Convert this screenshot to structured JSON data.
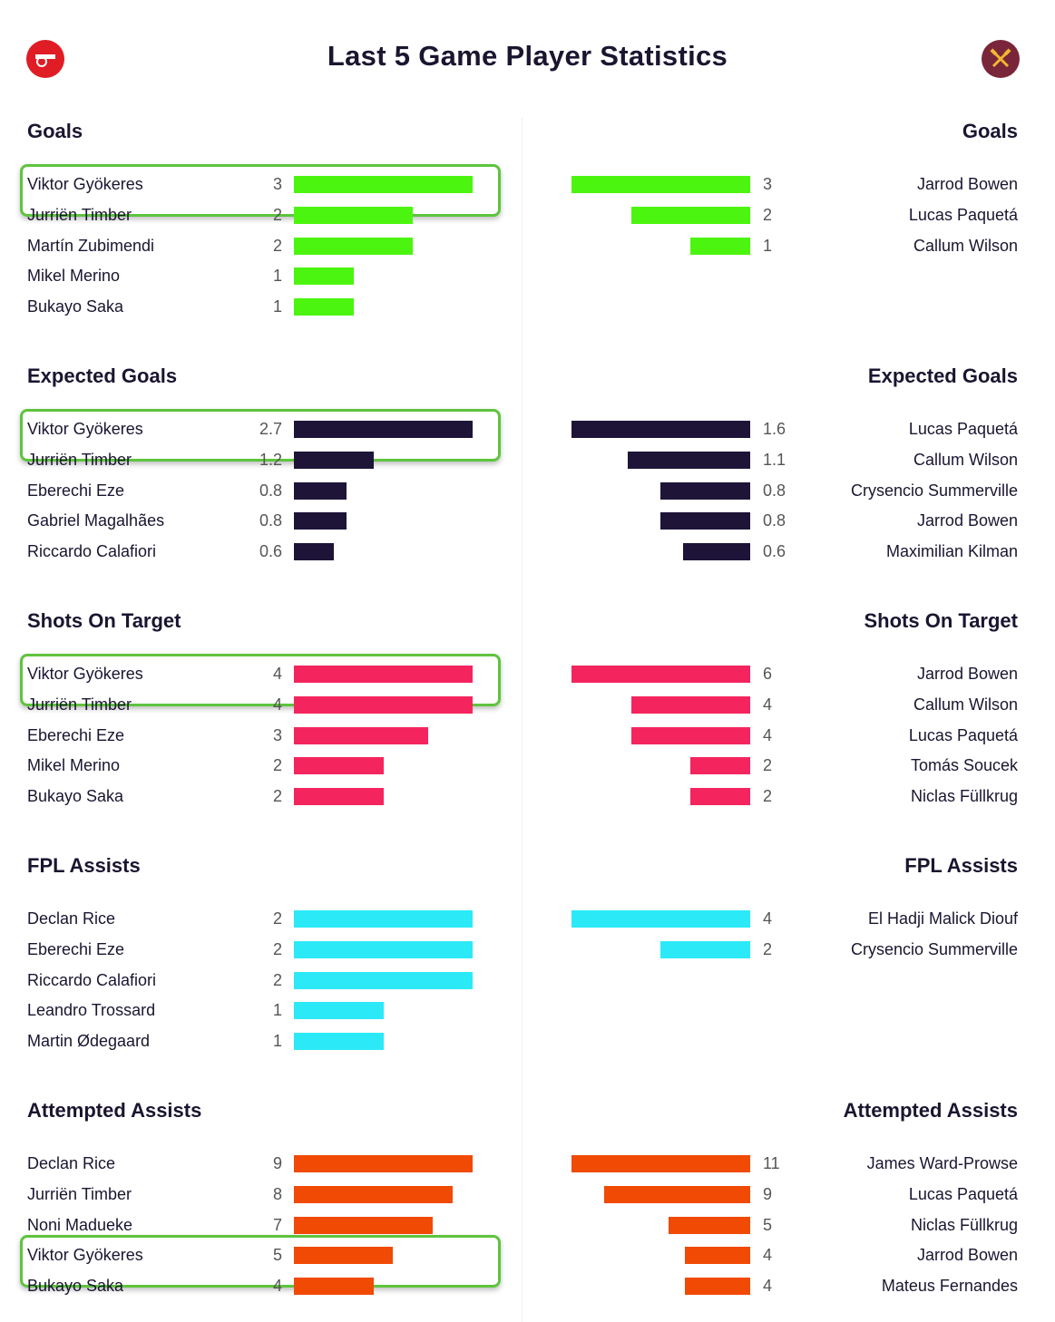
{
  "title": "Last 5 Game Player Statistics",
  "chart_data": {
    "type": "bar",
    "title": "Last 5 Game Player Statistics",
    "teams": {
      "home": "Arsenal",
      "away": "West Ham"
    },
    "sections": [
      {
        "title": "Goals",
        "color": "#4cf50f",
        "home": [
          {
            "name": "Viktor Gyökeres",
            "value": "3"
          },
          {
            "name": "Jurriën Timber",
            "value": "2"
          },
          {
            "name": "Martín Zubimendi",
            "value": "2"
          },
          {
            "name": "Mikel Merino",
            "value": "1"
          },
          {
            "name": "Bukayo Saka",
            "value": "1"
          }
        ],
        "away": [
          {
            "name": "Jarrod Bowen",
            "value": "3"
          },
          {
            "name": "Lucas Paquetá",
            "value": "2"
          },
          {
            "name": "Callum Wilson",
            "value": "1"
          }
        ],
        "highlight": 0
      },
      {
        "title": "Expected Goals",
        "color": "#1e1438",
        "home": [
          {
            "name": "Viktor Gyökeres",
            "value": "2.7"
          },
          {
            "name": "Jurriën Timber",
            "value": "1.2"
          },
          {
            "name": "Eberechi Eze",
            "value": "0.8"
          },
          {
            "name": "Gabriel Magalhães",
            "value": "0.8"
          },
          {
            "name": "Riccardo Calafiori",
            "value": "0.6"
          }
        ],
        "away": [
          {
            "name": "Lucas Paquetá",
            "value": "1.6"
          },
          {
            "name": "Callum Wilson",
            "value": "1.1"
          },
          {
            "name": "Crysencio Summerville",
            "value": "0.8"
          },
          {
            "name": "Jarrod Bowen",
            "value": "0.8"
          },
          {
            "name": "Maximilian Kilman",
            "value": "0.6"
          }
        ],
        "highlight": 0
      },
      {
        "title": "Shots On Target",
        "color": "#f4255e",
        "home": [
          {
            "name": "Viktor Gyökeres",
            "value": "4"
          },
          {
            "name": "Jurriën Timber",
            "value": "4"
          },
          {
            "name": "Eberechi Eze",
            "value": "3"
          },
          {
            "name": "Mikel Merino",
            "value": "2"
          },
          {
            "name": "Bukayo Saka",
            "value": "2"
          }
        ],
        "away": [
          {
            "name": "Jarrod Bowen",
            "value": "6"
          },
          {
            "name": "Callum Wilson",
            "value": "4"
          },
          {
            "name": "Lucas Paquetá",
            "value": "4"
          },
          {
            "name": "Tomás Soucek",
            "value": "2"
          },
          {
            "name": "Niclas Füllkrug",
            "value": "2"
          }
        ],
        "highlight": 0
      },
      {
        "title": "FPL Assists",
        "color": "#2ce9f8",
        "home": [
          {
            "name": "Declan Rice",
            "value": "2"
          },
          {
            "name": "Eberechi Eze",
            "value": "2"
          },
          {
            "name": "Riccardo Calafiori",
            "value": "2"
          },
          {
            "name": "Leandro Trossard",
            "value": "1"
          },
          {
            "name": "Martin Ødegaard",
            "value": "1"
          }
        ],
        "away": [
          {
            "name": "El Hadji Malick Diouf",
            "value": "4"
          },
          {
            "name": "Crysencio Summerville",
            "value": "2"
          }
        ],
        "highlight": null
      },
      {
        "title": "Attempted Assists",
        "color": "#f04a05",
        "home": [
          {
            "name": "Declan Rice",
            "value": "9"
          },
          {
            "name": "Jurriën Timber",
            "value": "8"
          },
          {
            "name": "Noni Madueke",
            "value": "7"
          },
          {
            "name": "Viktor Gyökeres",
            "value": "5"
          },
          {
            "name": "Bukayo Saka",
            "value": "4"
          }
        ],
        "away": [
          {
            "name": "James Ward-Prowse",
            "value": "11"
          },
          {
            "name": "Lucas Paquetá",
            "value": "9"
          },
          {
            "name": "Niclas Füllkrug",
            "value": "5"
          },
          {
            "name": "Jarrod Bowen",
            "value": "4"
          },
          {
            "name": "Mateus Fernandes",
            "value": "4"
          }
        ],
        "highlight": 3
      }
    ]
  }
}
